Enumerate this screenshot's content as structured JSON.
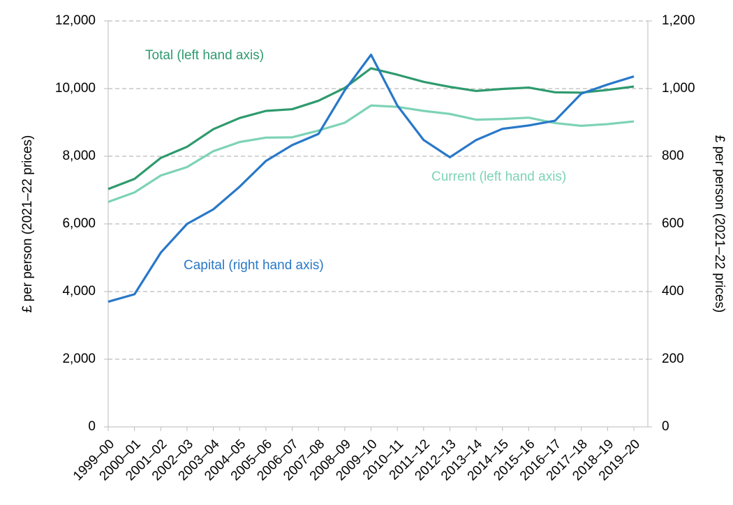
{
  "chart_data": {
    "type": "line",
    "categories": [
      "1999–00",
      "2000–01",
      "2001–02",
      "2002–03",
      "2003–04",
      "2004–05",
      "2005–06",
      "2006–07",
      "2007–08",
      "2008–09",
      "2009–10",
      "2010–11",
      "2011–12",
      "2012–13",
      "2013–14",
      "2014–15",
      "2015–16",
      "2016–17",
      "2017–18",
      "2018–19",
      "2019–20"
    ],
    "series": [
      {
        "name": "Total (left hand axis)",
        "color": "#2e9a6e",
        "axis": "y",
        "values": [
          7030,
          7330,
          7950,
          8280,
          8800,
          9130,
          9340,
          9390,
          9640,
          10020,
          10600,
          10410,
          10200,
          10050,
          9930,
          9990,
          10030,
          9890,
          9880,
          9960,
          10060
        ]
      },
      {
        "name": "Current (left hand axis)",
        "color": "#7dd3b5",
        "axis": "y",
        "values": [
          6650,
          6930,
          7430,
          7680,
          8150,
          8420,
          8550,
          8560,
          8760,
          8990,
          9500,
          9460,
          9340,
          9250,
          9080,
          9100,
          9140,
          8980,
          8900,
          8950,
          9030
        ]
      },
      {
        "name": "Capital (right hand axis)",
        "color": "#2878c8",
        "axis": "y2",
        "values": [
          370,
          392,
          515,
          600,
          643,
          710,
          786,
          833,
          866,
          995,
          1100,
          950,
          848,
          797,
          848,
          881,
          891,
          905,
          985,
          1012,
          1036
        ]
      }
    ],
    "ylabel": "£ per person (2021–22 prices)",
    "y2label": "£ per person (2021–22 prices)",
    "ylim": [
      0,
      12000
    ],
    "yticks": [
      0,
      {
        "value": 2000,
        "label": "2,000"
      },
      {
        "value": 4000,
        "label": "4,000"
      },
      {
        "value": 6000,
        "label": "6,000"
      },
      {
        "value": 8000,
        "label": "8,000"
      },
      {
        "value": 10000,
        "label": "10,000"
      },
      {
        "value": 12000,
        "label": "12,000"
      }
    ],
    "y2lim": [
      0,
      1200
    ],
    "y2ticks": [
      0,
      200,
      400,
      600,
      800,
      {
        "value": 1000,
        "label": "1,000"
      },
      {
        "value": 1200,
        "label": "1,200"
      }
    ],
    "grid": true
  }
}
